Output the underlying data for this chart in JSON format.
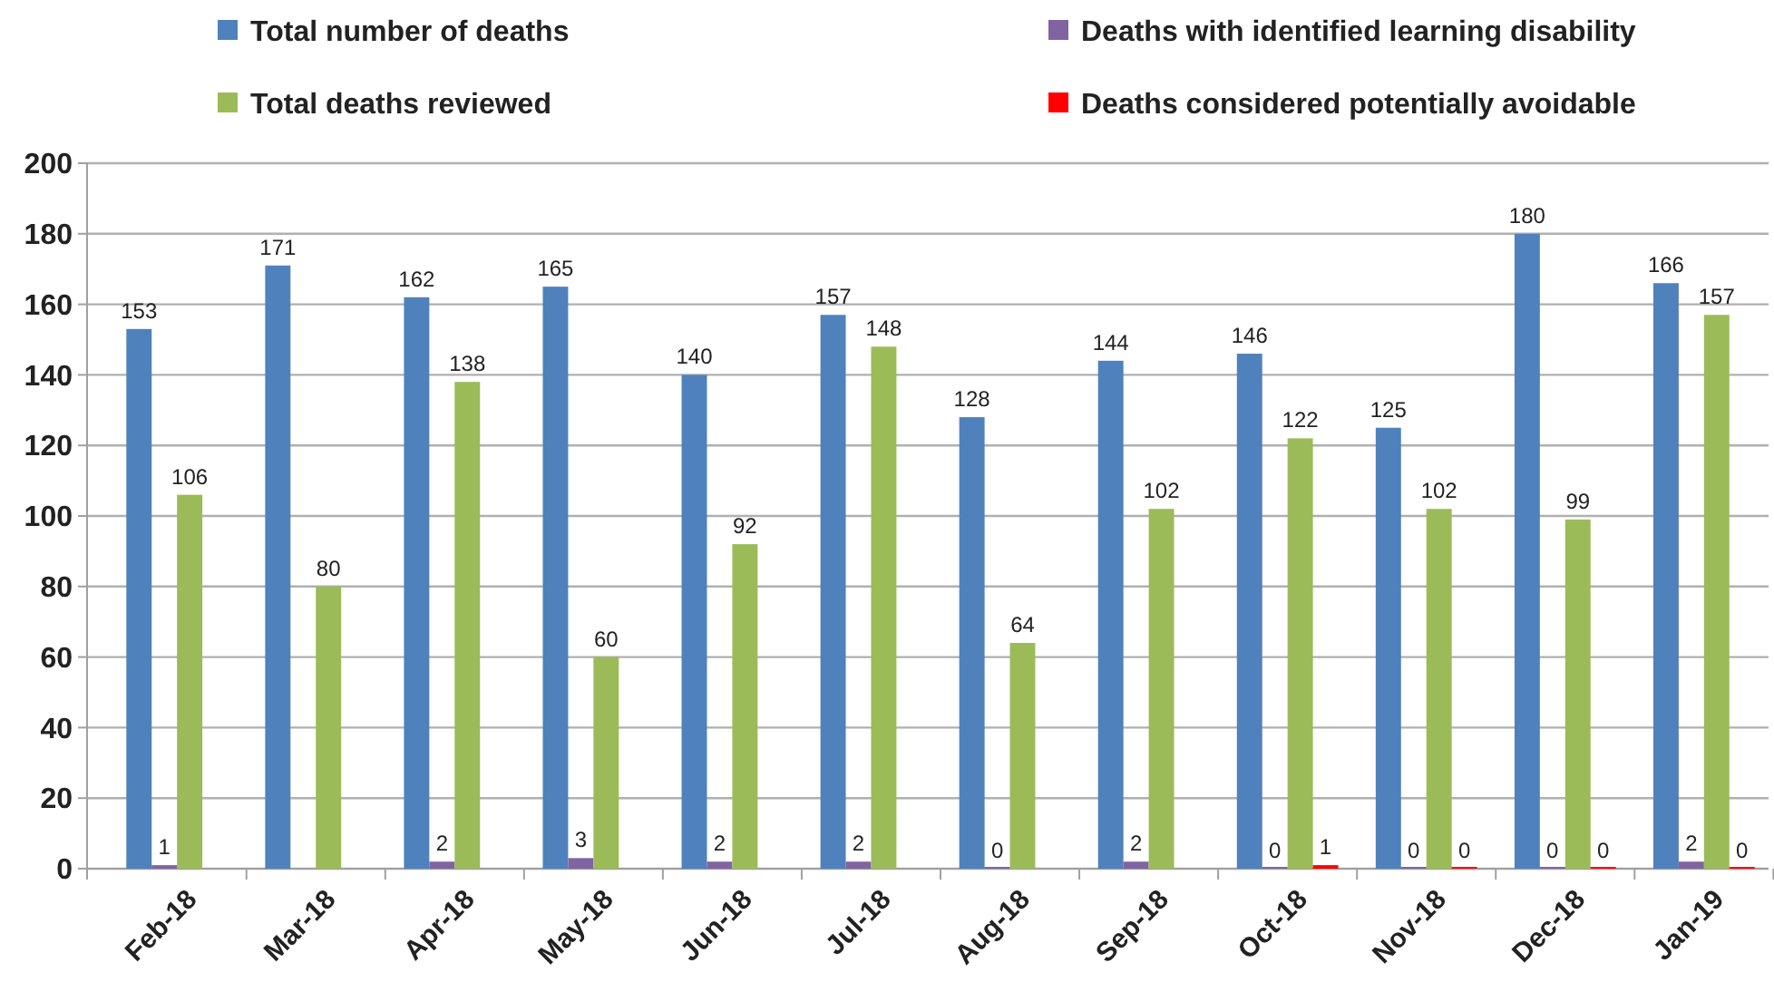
{
  "chart_data": {
    "type": "bar",
    "categories": [
      "Feb-18",
      "Mar-18",
      "Apr-18",
      "May-18",
      "Jun-18",
      "Jul-18",
      "Aug-18",
      "Sep-18",
      "Oct-18",
      "Nov-18",
      "Dec-18",
      "Jan-19"
    ],
    "series": [
      {
        "name": "Total number of deaths",
        "color": "#4f81bd",
        "values": [
          153,
          171,
          162,
          165,
          140,
          157,
          128,
          144,
          146,
          125,
          180,
          166
        ],
        "value_labels": [
          "153",
          "171",
          "162",
          "165",
          "140",
          "157",
          "128",
          "144",
          "146",
          "125",
          "180",
          "166"
        ]
      },
      {
        "name": "Deaths with identified learning disability",
        "color": "#8064a2",
        "values": [
          1,
          null,
          2,
          3,
          2,
          2,
          0,
          2,
          0,
          0,
          0,
          2
        ],
        "value_labels": [
          "1",
          null,
          "2",
          "3",
          "2",
          "2",
          "0",
          "2",
          "0",
          "0",
          "0",
          "2"
        ]
      },
      {
        "name": "Total deaths reviewed",
        "color": "#9bbb59",
        "values": [
          106,
          80,
          138,
          60,
          92,
          148,
          64,
          102,
          122,
          102,
          99,
          157
        ],
        "value_labels": [
          "106",
          "80",
          "138",
          "60",
          "92",
          "148",
          "64",
          "102",
          "122",
          "102",
          "99",
          "157"
        ]
      },
      {
        "name": "Deaths considered potentially avoidable",
        "color": "#ff0000",
        "values": [
          null,
          null,
          null,
          null,
          null,
          null,
          null,
          null,
          1,
          0,
          0,
          0
        ],
        "value_labels": [
          null,
          null,
          null,
          null,
          null,
          null,
          null,
          null,
          "1",
          "0",
          "0",
          "0"
        ]
      }
    ],
    "ylim": [
      0,
      200
    ],
    "yticks": [
      0,
      20,
      40,
      60,
      80,
      100,
      120,
      140,
      160,
      180,
      200
    ],
    "grid": "y",
    "legend": "top"
  }
}
